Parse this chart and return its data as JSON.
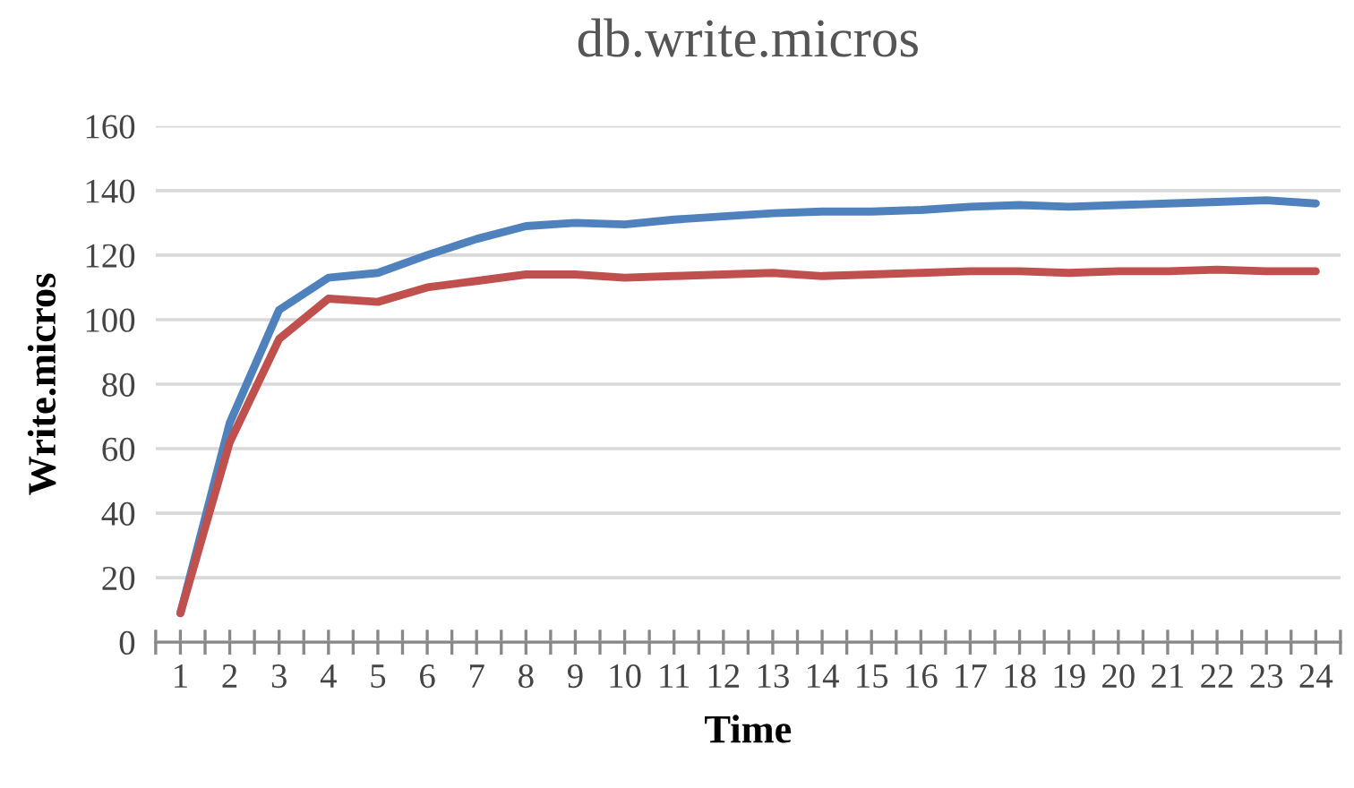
{
  "chart_data": {
    "type": "line",
    "title": "db.write.micros",
    "xlabel": "Time",
    "ylabel": "Write.micros",
    "categories": [
      "1",
      "2",
      "3",
      "4",
      "5",
      "6",
      "7",
      "8",
      "9",
      "10",
      "11",
      "12",
      "13",
      "14",
      "15",
      "16",
      "17",
      "18",
      "19",
      "20",
      "21",
      "22",
      "23",
      "24"
    ],
    "series": [
      {
        "color": "#4f81bd",
        "values": [
          9,
          68,
          103,
          113,
          114.5,
          120,
          125,
          129,
          130,
          129.5,
          131,
          132,
          133,
          133.5,
          133.5,
          134,
          135,
          135.5,
          135,
          135.5,
          136,
          136.5,
          137,
          136
        ]
      },
      {
        "color": "#c0504d",
        "values": [
          9,
          62,
          94,
          106.5,
          105.5,
          110,
          112,
          114,
          114,
          113,
          113.5,
          114,
          114.5,
          113.5,
          114,
          114.5,
          115,
          115,
          114.5,
          115,
          115,
          115.5,
          115,
          115
        ]
      }
    ],
    "ylim": [
      0,
      160
    ],
    "yticks": [
      0,
      20,
      40,
      60,
      80,
      100,
      120,
      140,
      160
    ],
    "grid": "y",
    "marker": "none",
    "line_style": "solid"
  }
}
